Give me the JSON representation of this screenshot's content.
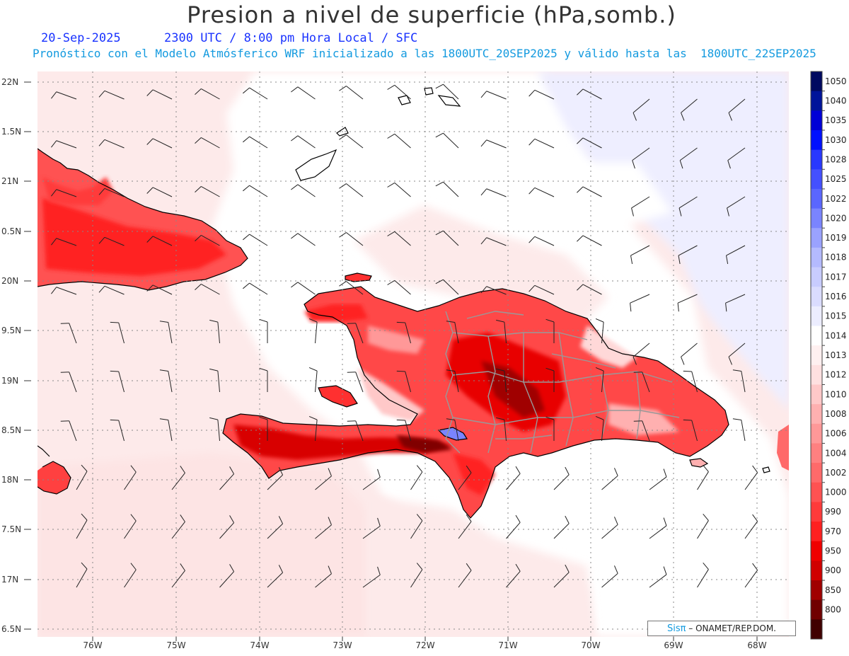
{
  "header": {
    "title": "Presion a nivel de superficie (hPa,somb.)",
    "date": "20-Sep-2025",
    "time": "2300 UTC / 8:00 pm Hora Local / SFC",
    "forecast": "Pronóstico con el Modelo Atmósferico WRF inicializado a las 1800UTC_20SEP2025 y válido hasta las  1800UTC_22SEP2025"
  },
  "axes": {
    "lat_labels": [
      "22N",
      "1.5N",
      "21N",
      "0.5N",
      "20N",
      "9.5N",
      "19N",
      "8.5N",
      "18N",
      "7.5N",
      "17N",
      "6.5N"
    ],
    "lon_labels": [
      "76W",
      "75W",
      "74W",
      "73W",
      "72W",
      "71W",
      "70W",
      "69W",
      "68W"
    ]
  },
  "legend": {
    "levels": [
      "1050",
      "1040",
      "1035",
      "1030",
      "1028",
      "1025",
      "1022",
      "1020",
      "1019",
      "1018",
      "1017",
      "1016",
      "1015",
      "1014",
      "1013",
      "1012",
      "1010",
      "1008",
      "1006",
      "1004",
      "1002",
      "1000",
      "990",
      "970",
      "950",
      "900",
      "850",
      "800"
    ],
    "colors": [
      "#000a60",
      "#00149a",
      "#0000d6",
      "#0010ff",
      "#2838ff",
      "#4450ff",
      "#5a66ff",
      "#7a84ff",
      "#9aa2ff",
      "#b4baff",
      "#c8ccff",
      "#dadcff",
      "#ecedff",
      "#ffffff",
      "#fff0f0",
      "#ffe0e0",
      "#ffc8c8",
      "#ffb0b0",
      "#ff9898",
      "#ff8080",
      "#ff6a6a",
      "#ff5252",
      "#ff3a3a",
      "#ff2020",
      "#f00000",
      "#d00000",
      "#a00000",
      "#700000",
      "#400000"
    ]
  },
  "credit": {
    "logo": "Sisπ",
    "text": "– ONAMET/REP.DOM."
  },
  "colors": {
    "ocean_low": "#fdeaea",
    "ocean_high": "#eeeeff",
    "land_low": "#ff1a1a",
    "land_mid": "#ff6060",
    "land_dark": "#c00000",
    "coast": "#000000",
    "provinces": "#999999"
  }
}
